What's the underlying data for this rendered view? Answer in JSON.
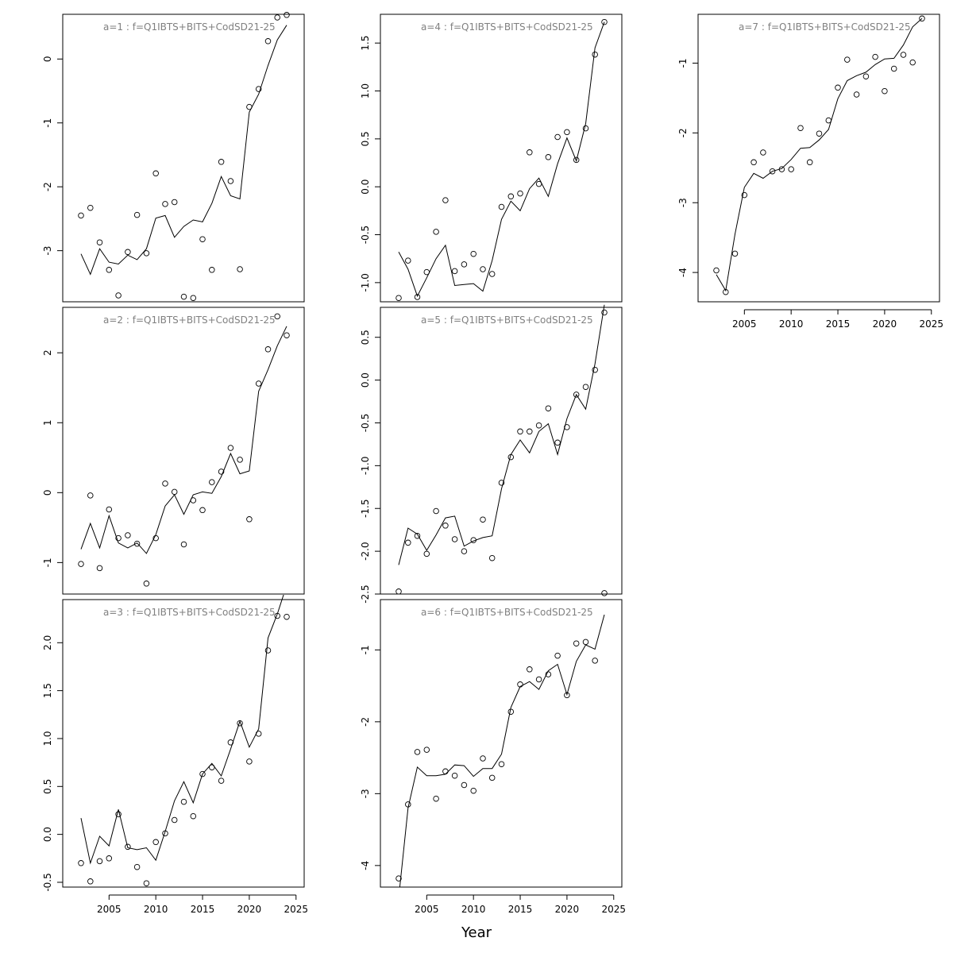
{
  "figure": {
    "xlabel": "Year"
  },
  "chart_data": [
    {
      "type": "scatter",
      "title": "a=1  :  f=Q1IBTS+BITS+CodSD21-25",
      "xlim": [
        2002,
        2024
      ],
      "ylim": [
        -3.8,
        0.7
      ],
      "yticks": [
        -3,
        -2,
        -1,
        0
      ],
      "show_x_axis": false,
      "x": [
        2002,
        2003,
        2004,
        2005,
        2006,
        2007,
        2008,
        2009,
        2010,
        2011,
        2012,
        2013,
        2014,
        2015,
        2016,
        2017,
        2018,
        2019,
        2020,
        2021,
        2022,
        2023,
        2024
      ],
      "observed": [
        -2.45,
        -2.33,
        -2.87,
        -3.3,
        -3.7,
        -3.02,
        -2.44,
        -3.04,
        -1.79,
        -2.27,
        -2.24,
        -3.72,
        -3.74,
        -2.82,
        -3.3,
        -1.61,
        -1.91,
        -3.29,
        -0.75,
        -0.47,
        0.28,
        0.65,
        0.69
      ],
      "fitted": [
        -3.05,
        -3.37,
        -2.97,
        -3.18,
        -3.21,
        -3.07,
        -3.14,
        -2.97,
        -2.49,
        -2.45,
        -2.79,
        -2.62,
        -2.52,
        -2.55,
        -2.26,
        -1.84,
        -2.14,
        -2.19,
        -0.83,
        -0.55,
        -0.1,
        0.3,
        0.53
      ]
    },
    {
      "type": "scatter",
      "title": "a=2  :  f=Q1IBTS+BITS+CodSD21-25",
      "xlim": [
        2002,
        2024
      ],
      "ylim": [
        -1.45,
        2.65
      ],
      "yticks": [
        -1,
        0,
        1,
        2
      ],
      "show_x_axis": false,
      "x": [
        2002,
        2003,
        2004,
        2005,
        2006,
        2007,
        2008,
        2009,
        2010,
        2011,
        2012,
        2013,
        2014,
        2015,
        2016,
        2017,
        2018,
        2019,
        2020,
        2021,
        2022,
        2023,
        2024
      ],
      "observed": [
        -1.02,
        -0.04,
        -1.08,
        -0.24,
        -0.65,
        -0.61,
        -0.73,
        -1.3,
        -0.65,
        0.13,
        0.01,
        -0.74,
        -0.11,
        -0.25,
        0.15,
        0.3,
        0.64,
        0.47,
        -0.38,
        1.56,
        2.05,
        2.52,
        2.25
      ],
      "fitted": [
        -0.81,
        -0.44,
        -0.79,
        -0.33,
        -0.72,
        -0.79,
        -0.72,
        -0.87,
        -0.6,
        -0.19,
        -0.03,
        -0.31,
        -0.03,
        0.01,
        -0.01,
        0.23,
        0.56,
        0.27,
        0.31,
        1.45,
        1.76,
        2.1,
        2.38
      ]
    },
    {
      "type": "scatter",
      "title": "a=3  :  f=Q1IBTS+BITS+CodSD21-25",
      "xlim": [
        2002,
        2024
      ],
      "ylim": [
        -0.55,
        2.45
      ],
      "yticks": [
        -0.5,
        0.0,
        0.5,
        1.0,
        1.5,
        2.0
      ],
      "xticks": [
        2005,
        2010,
        2015,
        2020,
        2025
      ],
      "show_x_axis": true,
      "x": [
        2002,
        2003,
        2004,
        2005,
        2006,
        2007,
        2008,
        2009,
        2010,
        2011,
        2012,
        2013,
        2014,
        2015,
        2016,
        2017,
        2018,
        2019,
        2020,
        2021,
        2022,
        2023,
        2024
      ],
      "observed": [
        -0.3,
        -0.49,
        -0.28,
        -0.25,
        0.21,
        -0.13,
        -0.34,
        -0.51,
        -0.08,
        0.01,
        0.15,
        0.34,
        0.19,
        0.63,
        0.7,
        0.56,
        0.96,
        1.16,
        0.76,
        1.05,
        1.92,
        2.28,
        2.27
      ],
      "fitted": [
        0.17,
        -0.3,
        -0.02,
        -0.12,
        0.26,
        -0.14,
        -0.16,
        -0.14,
        -0.27,
        0.03,
        0.35,
        0.55,
        0.33,
        0.63,
        0.74,
        0.61,
        0.89,
        1.18,
        0.91,
        1.1,
        2.05,
        2.3,
        2.6
      ]
    },
    {
      "type": "scatter",
      "title": "a=4  :  f=Q1IBTS+BITS+CodSD21-25",
      "xlim": [
        2002,
        2024
      ],
      "ylim": [
        -1.2,
        1.8
      ],
      "yticks": [
        -1.0,
        -0.5,
        0.0,
        0.5,
        1.0,
        1.5
      ],
      "show_x_axis": false,
      "x": [
        2002,
        2003,
        2004,
        2005,
        2006,
        2007,
        2008,
        2009,
        2010,
        2011,
        2012,
        2013,
        2014,
        2015,
        2016,
        2017,
        2018,
        2019,
        2020,
        2021,
        2022,
        2023,
        2024
      ],
      "observed": [
        -1.16,
        -0.77,
        -1.15,
        -0.89,
        -0.47,
        -0.14,
        -0.88,
        -0.81,
        -0.7,
        -0.86,
        -0.91,
        -0.21,
        -0.1,
        -0.07,
        0.36,
        0.03,
        0.31,
        0.52,
        0.57,
        0.28,
        0.61,
        1.38,
        1.72
      ],
      "fitted": [
        -0.68,
        -0.86,
        -1.14,
        -0.95,
        -0.75,
        -0.61,
        -1.03,
        -1.02,
        -1.01,
        -1.09,
        -0.77,
        -0.34,
        -0.15,
        -0.25,
        -0.02,
        0.09,
        -0.1,
        0.24,
        0.51,
        0.27,
        0.66,
        1.45,
        1.72
      ]
    },
    {
      "type": "scatter",
      "title": "a=5  :  f=Q1IBTS+BITS+CodSD21-25",
      "xlim": [
        2002,
        2024
      ],
      "ylim": [
        -2.5,
        0.85
      ],
      "yticks": [
        -2.5,
        -2.0,
        -1.5,
        -1.0,
        -0.5,
        0.0,
        0.5
      ],
      "show_x_axis": false,
      "x": [
        2002,
        2003,
        2004,
        2005,
        2006,
        2007,
        2008,
        2009,
        2010,
        2011,
        2012,
        2013,
        2014,
        2015,
        2016,
        2017,
        2018,
        2019,
        2020,
        2021,
        2022,
        2023,
        2024
      ],
      "observed": [
        -2.47,
        -1.9,
        -1.82,
        -2.03,
        -1.53,
        -1.7,
        -1.86,
        -2.0,
        -1.87,
        -1.63,
        -2.08,
        -1.2,
        -0.9,
        -0.6,
        -0.6,
        -0.53,
        -0.33,
        -0.73,
        -0.55,
        -0.17,
        -0.08,
        0.12,
        0.79
      ],
      "fitted": [
        -2.16,
        -1.73,
        -1.8,
        -1.99,
        -1.81,
        -1.61,
        -1.59,
        -1.94,
        -1.88,
        -1.84,
        -1.82,
        -1.27,
        -0.87,
        -0.7,
        -0.85,
        -0.6,
        -0.51,
        -0.87,
        -0.45,
        -0.17,
        -0.34,
        0.19,
        0.88
      ]
    },
    {
      "type": "scatter",
      "title": "a=6  :  f=Q1IBTS+BITS+CodSD21-25",
      "xlim": [
        2002,
        2024
      ],
      "ylim": [
        -4.3,
        -0.3
      ],
      "yticks": [
        -4,
        -3,
        -2,
        -1
      ],
      "xticks": [
        2005,
        2010,
        2015,
        2020,
        2025
      ],
      "show_x_axis": true,
      "x": [
        2002,
        2003,
        2004,
        2005,
        2006,
        2007,
        2008,
        2009,
        2010,
        2011,
        2012,
        2013,
        2014,
        2015,
        2016,
        2017,
        2018,
        2019,
        2020,
        2021,
        2022,
        2023,
        2024
      ],
      "observed": [
        -4.18,
        -3.15,
        -2.42,
        -2.39,
        -3.07,
        -2.69,
        -2.75,
        -2.88,
        -2.96,
        -2.51,
        -2.78,
        -2.59,
        -1.86,
        -1.48,
        -1.27,
        -1.41,
        -1.34,
        -1.08,
        -1.63,
        -0.91,
        -0.89,
        -1.15,
        -0.21
      ],
      "fitted": [
        -4.45,
        -3.2,
        -2.63,
        -2.75,
        -2.75,
        -2.73,
        -2.6,
        -2.61,
        -2.76,
        -2.65,
        -2.65,
        -2.45,
        -1.8,
        -1.51,
        -1.44,
        -1.55,
        -1.29,
        -1.2,
        -1.62,
        -1.16,
        -0.93,
        -0.99,
        -0.51
      ]
    },
    {
      "type": "scatter",
      "title": "a=7  :  f=Q1IBTS+BITS+CodSD21-25",
      "xlim": [
        2002,
        2024
      ],
      "ylim": [
        -4.42,
        -0.3
      ],
      "yticks": [
        -4,
        -3,
        -2,
        -1
      ],
      "xticks": [
        2005,
        2010,
        2015,
        2020,
        2025
      ],
      "show_x_axis": true,
      "x": [
        2002,
        2003,
        2004,
        2005,
        2006,
        2007,
        2008,
        2009,
        2010,
        2011,
        2012,
        2013,
        2014,
        2015,
        2016,
        2017,
        2018,
        2019,
        2020,
        2021,
        2022,
        2023,
        2024
      ],
      "observed": [
        -3.97,
        -4.28,
        -3.73,
        -2.89,
        -2.42,
        -2.28,
        -2.55,
        -2.52,
        -2.52,
        -1.93,
        -2.42,
        -2.01,
        -1.82,
        -1.35,
        -0.95,
        -1.45,
        -1.19,
        -0.91,
        -1.4,
        -1.08,
        -0.88,
        -0.99,
        -0.36
      ],
      "fitted": [
        -4.03,
        -4.26,
        -3.45,
        -2.78,
        -2.58,
        -2.65,
        -2.55,
        -2.51,
        -2.38,
        -2.22,
        -2.21,
        -2.1,
        -1.95,
        -1.51,
        -1.25,
        -1.18,
        -1.13,
        -1.02,
        -0.94,
        -0.93,
        -0.74,
        -0.48,
        -0.36
      ]
    }
  ]
}
